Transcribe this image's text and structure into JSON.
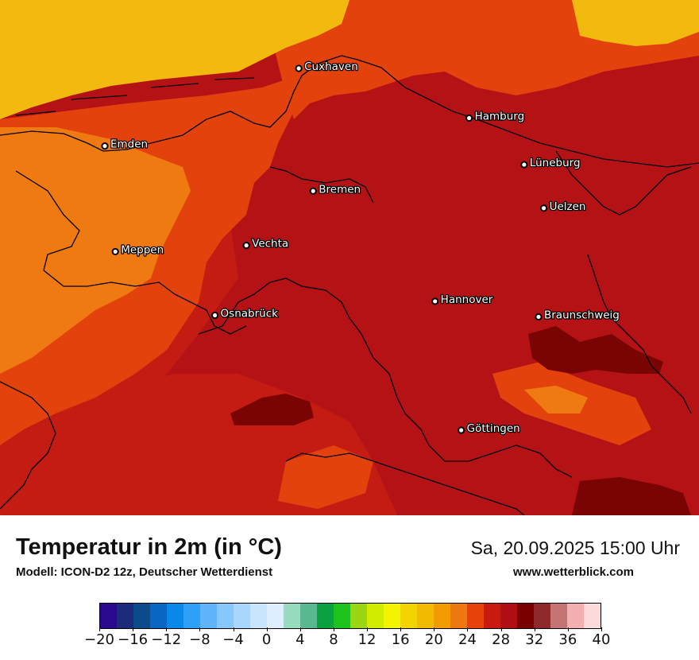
{
  "title": "Temperatur in 2m (in °C)",
  "subtitle": "Modell: ICON-D2 12z, Deutscher Wetterdienst",
  "datetime": "Sa, 20.09.2025 15:00 Uhr",
  "website": "www.wetterblick.com",
  "cities": [
    {
      "name": "Cuxhaven",
      "lon": 8.69,
      "lat": 53.87
    },
    {
      "name": "Hamburg",
      "lon": 9.99,
      "lat": 53.55
    },
    {
      "name": "Emden",
      "lon": 7.21,
      "lat": 53.37
    },
    {
      "name": "Lüneburg",
      "lon": 10.41,
      "lat": 53.25
    },
    {
      "name": "Bremen",
      "lon": 8.8,
      "lat": 53.08
    },
    {
      "name": "Uelzen",
      "lon": 10.56,
      "lat": 52.97
    },
    {
      "name": "Vechta",
      "lon": 8.29,
      "lat": 52.73
    },
    {
      "name": "Meppen",
      "lon": 7.29,
      "lat": 52.69
    },
    {
      "name": "Hannover",
      "lon": 9.73,
      "lat": 52.37
    },
    {
      "name": "Osnabrück",
      "lon": 8.05,
      "lat": 52.28
    },
    {
      "name": "Braunschweig",
      "lon": 10.52,
      "lat": 52.27
    },
    {
      "name": "Göttingen",
      "lon": 9.93,
      "lat": 51.54
    }
  ],
  "colorbar": {
    "tick_labels": [
      "−20",
      "−16",
      "−12",
      "−8",
      "−4",
      "0",
      "4",
      "8",
      "12",
      "16",
      "20",
      "24",
      "28",
      "32",
      "36",
      "40"
    ],
    "min": -20,
    "max": 40,
    "step": 2,
    "colors": [
      "#2a0a8c",
      "#1a2c7a",
      "#0d4c8c",
      "#0a66c2",
      "#0a88e8",
      "#2ea0f8",
      "#5fb4fa",
      "#86c8fb",
      "#a8d6fc",
      "#c9e4fd",
      "#ddeefe",
      "#98dcc0",
      "#5ab890",
      "#0ba040",
      "#1ec21e",
      "#9ad612",
      "#d2ec00",
      "#f4f400",
      "#f2d400",
      "#f2ba00",
      "#f29c00",
      "#ee7810",
      "#e6420a",
      "#c81a10",
      "#b01014",
      "#780000",
      "#8e2a2a",
      "#c47474",
      "#f4b0b0",
      "#fcdada"
    ]
  },
  "map_fill": {
    "coast_sea": "#f2b90e",
    "range_22_24": "#f07a12",
    "range_24_26": "#e4420c",
    "range_26_28": "#c41c12",
    "range_28_30": "#b41214",
    "range_30_32": "#7a0404"
  }
}
